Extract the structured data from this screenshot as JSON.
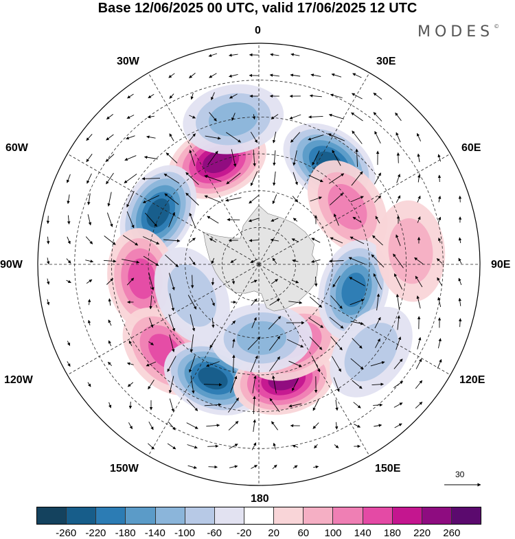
{
  "title": "Base 12/06/2025 00 UTC, valid 17/06/2025 12 UTC",
  "brand": "MODES",
  "brand_mark": "©",
  "meridian_labels": {
    "0": "0",
    "30E": "30E",
    "60E": "60E",
    "90E": "90E",
    "120E": "120E",
    "150E": "150E",
    "180": "180",
    "150W": "150W",
    "120W": "120W",
    "90W": "90W",
    "60W": "60W",
    "30W": "30W"
  },
  "vector_reference": "30",
  "colors": {
    "bins": [
      "#14425e",
      "#175d8a",
      "#2c7cb4",
      "#5b9bc8",
      "#8bb5da",
      "#b7c9e6",
      "#e2e2f1",
      "#ffffff",
      "#f9d5d8",
      "#f5afc4",
      "#ef7fb4",
      "#e44aa5",
      "#c4168f",
      "#8e0c80",
      "#5b0a6e"
    ],
    "land": "#e4e4e4"
  },
  "colorbar": {
    "ticks": [
      "-260",
      "-220",
      "-180",
      "-140",
      "-100",
      "-60",
      "-20",
      "20",
      "60",
      "100",
      "140",
      "180",
      "220",
      "260"
    ]
  },
  "anomaly_centers": [
    {
      "lat": -40,
      "lon": 35,
      "value": -240
    },
    {
      "lat": -47,
      "lon": 57,
      "value": 120
    },
    {
      "lat": -45,
      "lon": -22,
      "value": 240
    },
    {
      "lat": -44,
      "lon": -63,
      "value": -250
    },
    {
      "lat": -42,
      "lon": -97,
      "value": 170
    },
    {
      "lat": -38,
      "lon": -133,
      "value": 150
    },
    {
      "lat": -40,
      "lon": -158,
      "value": -230
    },
    {
      "lat": -42,
      "lon": 168,
      "value": 230
    },
    {
      "lat": -55,
      "lon": 157,
      "value": 150
    },
    {
      "lat": -50,
      "lon": 105,
      "value": -200
    },
    {
      "lat": -30,
      "lon": -10,
      "value": -100
    },
    {
      "lat": -60,
      "lon": 178,
      "value": -110
    },
    {
      "lat": -32,
      "lon": 128,
      "value": -90
    },
    {
      "lat": -28,
      "lon": 85,
      "value": 60
    },
    {
      "lat": -60,
      "lon": -115,
      "value": -70
    }
  ]
}
